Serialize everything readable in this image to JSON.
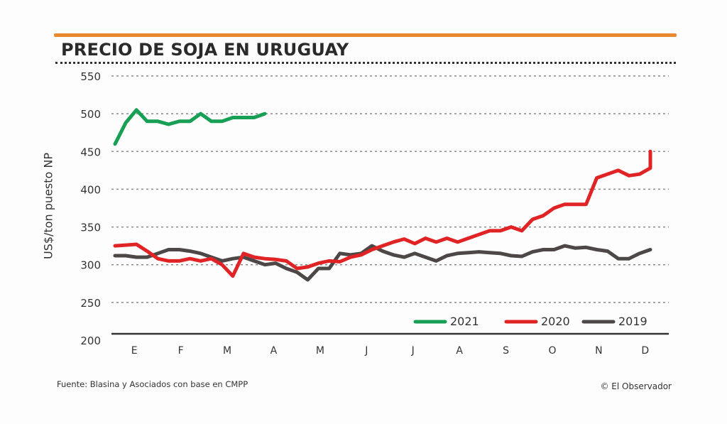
{
  "header": {
    "title": "PRECIO DE SOJA EN URUGUAY",
    "accent_color": "#e8892e"
  },
  "footer": {
    "source": "Fuente: Blasina y Asociados con base en CMPP",
    "credit": "© El Observador"
  },
  "chart_data": {
    "type": "line",
    "title": "PRECIO DE SOJA EN URUGUAY",
    "xlabel": "",
    "ylabel": "US$/ton puesto NP",
    "ylim": [
      200,
      550
    ],
    "yticks": [
      200,
      250,
      300,
      350,
      400,
      450,
      500,
      550
    ],
    "ytick_labels": [
      "200",
      "250",
      "300",
      "350",
      "400",
      "450",
      "500",
      "550"
    ],
    "categories": [
      "E",
      "F",
      "M",
      "A",
      "M",
      "J",
      "J",
      "A",
      "S",
      "O",
      "N",
      "D"
    ],
    "x_unit": "weekly observations across calendar months (Jan–Dec)",
    "grid": "horizontal dotted",
    "legend": "bottom-right",
    "series": [
      {
        "name": "2021",
        "color": "#17a055",
        "values": [
          460,
          488,
          505,
          490,
          490,
          486,
          490,
          490,
          500,
          490,
          490,
          495,
          495,
          495,
          500
        ]
      },
      {
        "name": "2020",
        "color": "#e02426",
        "values": [
          325,
          326,
          327,
          318,
          308,
          305,
          305,
          308,
          305,
          308,
          300,
          285,
          315,
          310,
          308,
          307,
          305,
          295,
          297,
          302,
          305,
          304,
          310,
          313,
          320,
          325,
          330,
          334,
          328,
          335,
          330,
          335,
          330,
          335,
          340,
          345,
          345,
          350,
          345,
          360,
          365,
          375,
          380,
          380,
          380,
          415,
          420,
          425,
          418,
          420,
          428,
          450
        ]
      },
      {
        "name": "2019",
        "color": "#4d4748",
        "values": [
          312,
          312,
          310,
          310,
          315,
          320,
          320,
          318,
          315,
          310,
          305,
          308,
          310,
          305,
          300,
          302,
          295,
          290,
          280,
          295,
          295,
          315,
          313,
          315,
          325,
          318,
          313,
          310,
          315,
          310,
          305,
          312,
          315,
          316,
          317,
          316,
          315,
          312,
          311,
          317,
          320,
          320,
          325,
          322,
          323,
          320,
          318,
          308,
          308,
          315,
          320,
          320
        ]
      }
    ]
  }
}
